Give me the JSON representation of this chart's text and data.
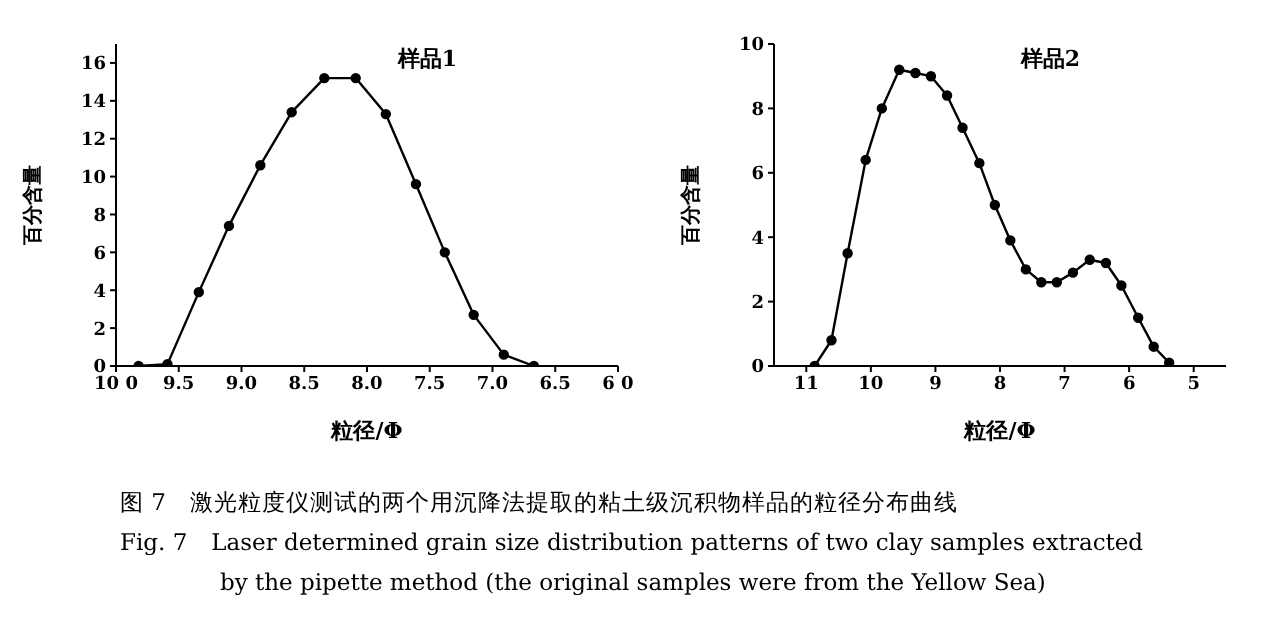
{
  "chart_data": [
    {
      "type": "line",
      "title": "样品1",
      "xlabel": "粒径/Φ",
      "ylabel": "百分含量",
      "marker": "circle",
      "line_style": "solid",
      "xlim": [
        10,
        6
      ],
      "xticks": [
        {
          "value": 10,
          "label": "10 0"
        },
        9.5,
        {
          "value": 9,
          "label": "9.0"
        },
        8.5,
        {
          "value": 8,
          "label": "8.0"
        },
        7.5,
        {
          "value": 7,
          "label": "7.0"
        },
        6.5,
        {
          "value": 6,
          "label": "6 0"
        }
      ],
      "ylim": [
        0,
        17
      ],
      "yticks": [
        0,
        2,
        4,
        6,
        8,
        10,
        12,
        14,
        16
      ],
      "series": [
        {
          "color": "#000000",
          "x": [
            9.82,
            9.59,
            9.34,
            9.1,
            8.85,
            8.6,
            8.34,
            8.09,
            7.85,
            7.61,
            7.38,
            7.15,
            6.91,
            6.67
          ],
          "values": [
            0,
            0.1,
            3.9,
            7.4,
            10.6,
            13.4,
            15.2,
            15.2,
            13.3,
            9.6,
            6.0,
            2.7,
            0.6,
            0
          ]
        }
      ],
      "annotations": [
        "图 7　激光粒度仪测试的两个用沉降法提取的粘土级沉积物样品的粒径分布曲线",
        "Fig. 7　Laser determined grain size distribution patterns of two clay samples extracted",
        "by the pipette method (the original samples were from the Yellow Sea)"
      ]
    },
    {
      "type": "line",
      "title": "样品2",
      "xlabel": "粒径/Φ",
      "ylabel": "百分含量",
      "marker": "circle",
      "line_style": "solid",
      "xlim": [
        11.5,
        4.5
      ],
      "xticks": [
        11,
        10,
        9,
        8,
        7,
        6,
        5
      ],
      "ylim": [
        0,
        10
      ],
      "yticks": [
        0,
        2,
        4,
        6,
        8,
        10
      ],
      "series": [
        {
          "color": "#000000",
          "x": [
            10.87,
            10.61,
            10.36,
            10.08,
            9.83,
            9.56,
            9.31,
            9.07,
            8.82,
            8.58,
            8.32,
            8.08,
            7.84,
            7.6,
            7.36,
            7.12,
            6.87,
            6.61,
            6.36,
            6.12,
            5.86,
            5.62,
            5.38
          ],
          "values": [
            0,
            0.8,
            3.5,
            6.4,
            8.0,
            9.2,
            9.1,
            9.0,
            8.4,
            7.4,
            6.3,
            5.0,
            3.9,
            3.0,
            2.6,
            2.6,
            2.9,
            3.3,
            3.2,
            2.5,
            1.5,
            0.6,
            0.1
          ]
        }
      ]
    }
  ]
}
